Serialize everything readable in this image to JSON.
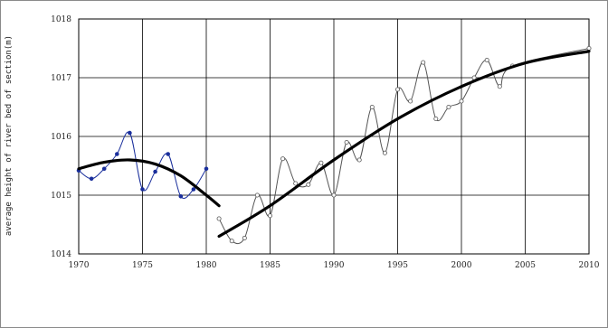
{
  "chart_data": {
    "type": "line",
    "title": "",
    "xlabel": "",
    "ylabel": "average height of river bed of section(m)",
    "xlim": [
      1970,
      2010
    ],
    "ylim": [
      1014,
      1018
    ],
    "x_ticks": [
      1970,
      1975,
      1980,
      1985,
      1990,
      1995,
      2000,
      2005,
      2010
    ],
    "y_ticks": [
      1014,
      1015,
      1016,
      1017,
      1018
    ],
    "grid": true,
    "legend": "none",
    "series": [
      {
        "style": "observed-early",
        "color": "#1a2f9c",
        "x": [
          1970,
          1971,
          1972,
          1973,
          1974,
          1975,
          1976,
          1977,
          1978,
          1979,
          1980
        ],
        "values": [
          1015.42,
          1015.28,
          1015.45,
          1015.7,
          1016.06,
          1015.1,
          1015.4,
          1015.7,
          1014.98,
          1015.1,
          1015.45
        ]
      },
      {
        "style": "observed-late",
        "color": "#555555",
        "x": [
          1981,
          1982,
          1983,
          1984,
          1985,
          1986,
          1987,
          1988,
          1989,
          1990,
          1991,
          1992,
          1993,
          1994,
          1995,
          1996,
          1997,
          1998,
          1999,
          2000,
          2001,
          2002,
          2003,
          2004,
          2010
        ],
        "values": [
          1014.6,
          1014.22,
          1014.27,
          1015.0,
          1014.65,
          1015.62,
          1015.2,
          1015.18,
          1015.55,
          1015.0,
          1015.9,
          1015.6,
          1016.5,
          1015.72,
          1016.8,
          1016.6,
          1017.26,
          1016.3,
          1016.5,
          1016.6,
          1017.0,
          1017.3,
          1016.85,
          1017.2,
          1017.5
        ]
      },
      {
        "style": "trend",
        "color": "#000000",
        "x": [
          1970,
          1972,
          1974,
          1976,
          1978,
          1980,
          1981
        ],
        "values": [
          1015.45,
          1015.56,
          1015.6,
          1015.53,
          1015.33,
          1015.0,
          1014.82
        ]
      },
      {
        "style": "trend",
        "color": "#000000",
        "x": [
          1981,
          1985,
          1990,
          1995,
          2000,
          2005,
          2010
        ],
        "values": [
          1014.3,
          1014.82,
          1015.6,
          1016.3,
          1016.85,
          1017.25,
          1017.45
        ]
      }
    ]
  }
}
